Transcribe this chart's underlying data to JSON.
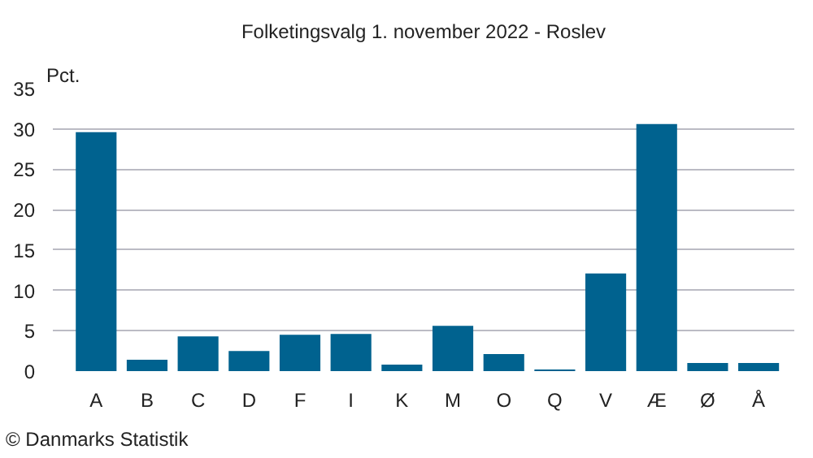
{
  "chart_data": {
    "type": "bar",
    "title": "Folketingsvalg 1. november 2022 - Roslev",
    "ylabel": "Pct.",
    "categories": [
      "A",
      "B",
      "C",
      "D",
      "F",
      "I",
      "K",
      "M",
      "O",
      "Q",
      "V",
      "Æ",
      "Ø",
      "Å"
    ],
    "values": [
      29.6,
      1.4,
      4.3,
      2.5,
      4.5,
      4.6,
      0.8,
      5.6,
      2.1,
      0.2,
      12.1,
      30.6,
      1.0,
      1.0
    ],
    "color": "#00628f",
    "ylim": [
      0,
      35
    ],
    "yticks": [
      0,
      5,
      10,
      15,
      20,
      25,
      30,
      35
    ],
    "grid": "y",
    "annotations": [
      "© Danmarks Statistik"
    ]
  }
}
